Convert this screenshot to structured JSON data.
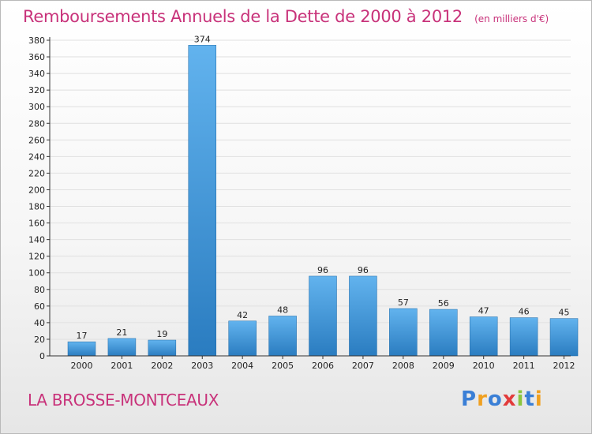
{
  "title": "Remboursements Annuels de la Dette de 2000 à 2012",
  "subtitle": "(en milliers d'€)",
  "place": "LA BROSSE-MONTCEAUX",
  "logo": {
    "letters": [
      "P",
      "r",
      "o",
      "x",
      "i",
      "t",
      "i"
    ],
    "colors": [
      "#3a7fd6",
      "#f0a020",
      "#3a7fd6",
      "#e23b3b",
      "#8cc63f",
      "#3a7fd6",
      "#f0a020"
    ]
  },
  "colors": {
    "accent": "#c8327a",
    "bar_light": "#62b3ee",
    "bar_dark": "#2a7cc0",
    "axis": "#333333",
    "grid": "#e0e0e0"
  },
  "chart_data": {
    "type": "bar",
    "title": "Remboursements Annuels de la Dette de 2000 à 2012",
    "subtitle": "(en milliers d'€)",
    "categories": [
      "2000",
      "2001",
      "2002",
      "2003",
      "2004",
      "2005",
      "2006",
      "2007",
      "2008",
      "2009",
      "2010",
      "2011",
      "2012"
    ],
    "values": [
      17,
      21,
      19,
      374,
      42,
      48,
      96,
      96,
      57,
      56,
      47,
      46,
      45
    ],
    "ylim": [
      0,
      380
    ],
    "yticks": [
      0,
      20,
      40,
      60,
      80,
      100,
      120,
      140,
      160,
      180,
      200,
      220,
      240,
      260,
      280,
      300,
      320,
      340,
      360,
      380
    ],
    "grid": true,
    "xlabel": "",
    "ylabel": ""
  }
}
